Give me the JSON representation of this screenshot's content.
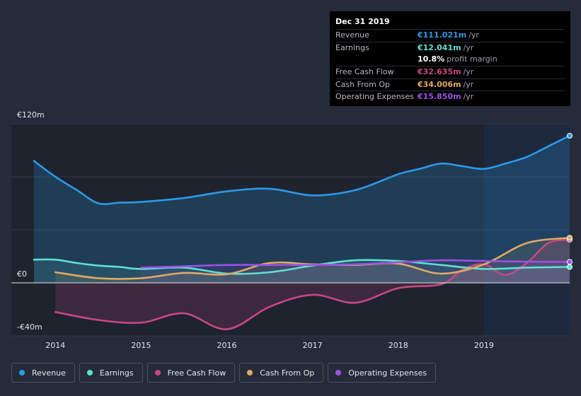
{
  "colors": {
    "revenue": "#2b9ae9",
    "earnings": "#5ee1cf",
    "free_cash_flow": "#c94784",
    "cash_from_op": "#e0a964",
    "operating_expenses": "#9b50e8"
  },
  "tooltip": {
    "date": "Dec 31 2019",
    "rows": [
      {
        "label": "Revenue",
        "value": "€111.021m",
        "unit": "/yr",
        "color": "#2b9ae9"
      },
      {
        "label": "Earnings",
        "value": "€12.041m",
        "unit": "/yr",
        "color": "#5ee1cf"
      },
      {
        "label": "",
        "value": "10.8%",
        "unit": "profit margin",
        "color": "#ffffff"
      },
      {
        "label": "Free Cash Flow",
        "value": "€32.635m",
        "unit": "/yr",
        "color": "#c94784"
      },
      {
        "label": "Cash From Op",
        "value": "€34.006m",
        "unit": "/yr",
        "color": "#e0a964"
      },
      {
        "label": "Operating Expenses",
        "value": "€15.850m",
        "unit": "/yr",
        "color": "#9b50e8"
      }
    ]
  },
  "legend": [
    {
      "label": "Revenue",
      "color": "#2b9ae9"
    },
    {
      "label": "Earnings",
      "color": "#5ee1cf"
    },
    {
      "label": "Free Cash Flow",
      "color": "#c94784"
    },
    {
      "label": "Cash From Op",
      "color": "#e0a964"
    },
    {
      "label": "Operating Expenses",
      "color": "#9b50e8"
    }
  ],
  "chart_data": {
    "type": "line",
    "title": "",
    "xlabel": "",
    "ylabel": "",
    "xlim": [
      2013.75,
      2020.0
    ],
    "ylim": [
      -40,
      120
    ],
    "y_tick_labels": [
      {
        "value": 120,
        "label": "€120m"
      },
      {
        "value": 0,
        "label": "€0"
      },
      {
        "value": -40,
        "label": "-€40m"
      }
    ],
    "x_tick_labels": [
      "2014",
      "2015",
      "2016",
      "2017",
      "2018",
      "2019"
    ],
    "x_ticks": [
      2014,
      2015,
      2016,
      2017,
      2018,
      2019
    ],
    "highlight_start": 2019.0,
    "series": [
      {
        "name": "Revenue",
        "key": "revenue",
        "x": [
          2013.75,
          2014.0,
          2014.25,
          2014.5,
          2014.75,
          2015.0,
          2015.5,
          2016.0,
          2016.5,
          2017.0,
          2017.5,
          2018.0,
          2018.25,
          2018.5,
          2018.75,
          2019.0,
          2019.25,
          2019.5,
          2019.75,
          2020.0
        ],
        "values": [
          92,
          80,
          70,
          60,
          60.5,
          61,
          64,
          69,
          71,
          66,
          70,
          82,
          86,
          90,
          88,
          86,
          90,
          95,
          103,
          111
        ]
      },
      {
        "name": "Earnings",
        "key": "earnings",
        "x": [
          2013.75,
          2014.0,
          2014.25,
          2014.5,
          2014.75,
          2015.0,
          2015.5,
          2016.0,
          2016.5,
          2017.0,
          2017.5,
          2018.0,
          2018.5,
          2019.0,
          2019.5,
          2020.0
        ],
        "values": [
          17.5,
          17.5,
          15,
          13,
          12,
          10.5,
          11.5,
          7,
          8,
          13,
          17,
          16.5,
          13.5,
          10.5,
          11.5,
          12
        ]
      },
      {
        "name": "Free Cash Flow",
        "key": "free_cash_flow",
        "x": [
          2014.0,
          2014.5,
          2015.0,
          2015.5,
          2016.0,
          2016.5,
          2017.0,
          2017.5,
          2018.0,
          2018.5,
          2018.75,
          2019.0,
          2019.25,
          2019.5,
          2019.75,
          2020.0
        ],
        "values": [
          -22,
          -28,
          -30,
          -23,
          -35,
          -18,
          -9,
          -15,
          -4,
          -1,
          10,
          14,
          6,
          15,
          30,
          32.6
        ]
      },
      {
        "name": "Cash From Op",
        "key": "cash_from_op",
        "x": [
          2014.0,
          2014.5,
          2015.0,
          2015.5,
          2016.0,
          2016.5,
          2017.0,
          2017.5,
          2018.0,
          2018.5,
          2019.0,
          2019.5,
          2020.0
        ],
        "values": [
          8,
          3.5,
          3.5,
          7.5,
          6.5,
          15,
          14,
          13.5,
          14.5,
          7,
          14,
          30,
          34
        ]
      },
      {
        "name": "Operating Expenses",
        "key": "operating_expenses",
        "x": [
          2015.0,
          2015.5,
          2016.0,
          2016.5,
          2017.0,
          2017.5,
          2018.0,
          2018.5,
          2019.0,
          2019.5,
          2020.0
        ],
        "values": [
          11.5,
          12.5,
          13.5,
          13.5,
          13.5,
          14,
          15.5,
          17,
          16.5,
          16,
          15.85
        ]
      }
    ]
  }
}
